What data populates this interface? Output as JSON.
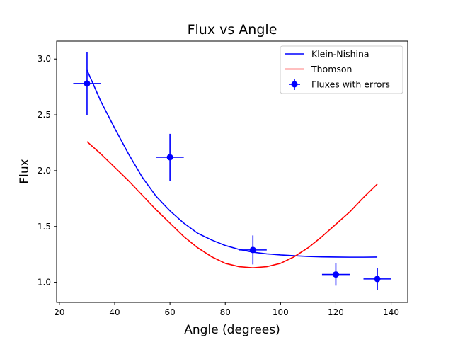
{
  "chart_data": {
    "type": "line",
    "title": "Flux vs Angle",
    "xlabel": "Angle (degrees)",
    "ylabel": "Flux",
    "xlim": [
      19,
      146
    ],
    "ylim": [
      0.82,
      3.16
    ],
    "x_ticks": [
      20,
      40,
      60,
      80,
      100,
      120,
      140
    ],
    "y_ticks": [
      1.0,
      1.5,
      2.0,
      2.5,
      3.0
    ],
    "grid": false,
    "legend_position": "top-right",
    "series": [
      {
        "name": "Klein-Nishina",
        "kind": "line",
        "color": "#0000ff",
        "x": [
          30,
          35,
          40,
          45,
          50,
          55,
          60,
          65,
          70,
          75,
          80,
          85,
          90,
          95,
          100,
          105,
          110,
          115,
          120,
          125,
          130,
          135
        ],
        "y": [
          2.9,
          2.62,
          2.38,
          2.15,
          1.94,
          1.77,
          1.64,
          1.53,
          1.44,
          1.38,
          1.33,
          1.295,
          1.27,
          1.255,
          1.245,
          1.238,
          1.232,
          1.228,
          1.226,
          1.225,
          1.225,
          1.226
        ]
      },
      {
        "name": "Thomson",
        "kind": "line",
        "color": "#ff0000",
        "x": [
          30,
          35,
          40,
          45,
          50,
          55,
          60,
          65,
          70,
          75,
          80,
          85,
          90,
          95,
          100,
          105,
          110,
          115,
          120,
          125,
          130,
          135
        ],
        "y": [
          2.26,
          2.15,
          2.03,
          1.91,
          1.78,
          1.65,
          1.53,
          1.41,
          1.31,
          1.23,
          1.17,
          1.14,
          1.13,
          1.14,
          1.17,
          1.23,
          1.31,
          1.41,
          1.52,
          1.63,
          1.76,
          1.88
        ]
      },
      {
        "name": "Fluxes with errors",
        "kind": "errorbar",
        "color": "#0000ff",
        "x": [
          30,
          60,
          90,
          120,
          135
        ],
        "y": [
          2.78,
          2.12,
          1.29,
          1.07,
          1.03
        ],
        "xerr": [
          5,
          5,
          5,
          5,
          5
        ],
        "yerr": [
          0.28,
          0.21,
          0.13,
          0.1,
          0.1
        ]
      }
    ]
  }
}
